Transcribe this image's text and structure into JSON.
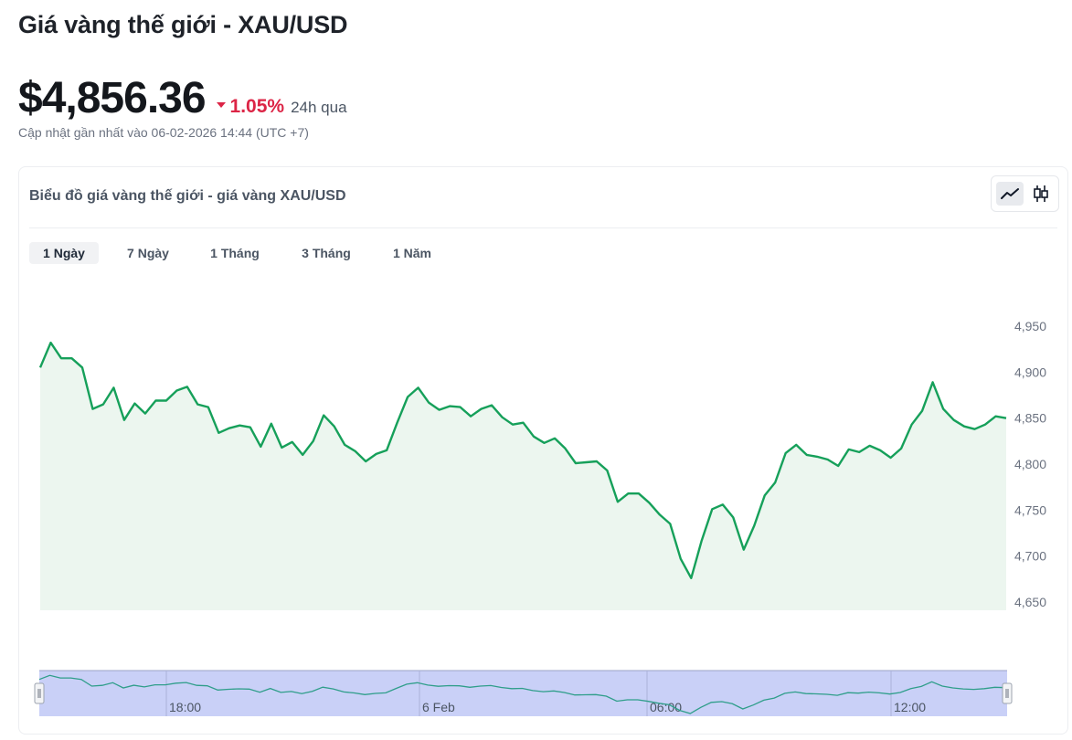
{
  "header": {
    "title": "Giá vàng thế giới - XAU/USD",
    "price": "$4,856.36",
    "change_pct": "1.05%",
    "change_label": "24h qua",
    "updated": "Cập nhật gần nhất vào 06-02-2026 14:44 (UTC +7)"
  },
  "card": {
    "title": "Biểu đồ giá vàng thế giới - giá vàng XAU/USD",
    "chart_types": [
      "line-chart-icon",
      "candlestick-icon"
    ],
    "active_chart_type": "line-chart-icon",
    "ranges": [
      "1 Ngày",
      "7 Ngày",
      "1 Tháng",
      "3 Tháng",
      "1 Năm"
    ],
    "active_range": "1 Ngày"
  },
  "colors": {
    "line": "#16a05a",
    "area": "#ecf6ef",
    "down": "#dc2546",
    "navigator_fill": "#c9d0f7",
    "navigator_line": "#2f9e8a"
  },
  "chart_data": {
    "type": "area",
    "y_ticks": [
      "4,950",
      "4,900",
      "4,850",
      "4,800",
      "4,750",
      "4,700",
      "4,650"
    ],
    "ylim": [
      4650,
      4950
    ],
    "navigator_ticks": [
      "18:00",
      "6 Feb",
      "06:00",
      "12:00"
    ],
    "grid": false,
    "values": [
      4905,
      4932,
      4915,
      4915,
      4905,
      4860,
      4865,
      4883,
      4848,
      4866,
      4855,
      4869,
      4869,
      4880,
      4884,
      4865,
      4862,
      4834,
      4839,
      4842,
      4840,
      4819,
      4844,
      4818,
      4824,
      4810,
      4825,
      4853,
      4841,
      4821,
      4814,
      4803,
      4811,
      4815,
      4845,
      4873,
      4883,
      4867,
      4859,
      4863,
      4862,
      4852,
      4860,
      4864,
      4851,
      4843,
      4845,
      4830,
      4823,
      4828,
      4817,
      4801,
      4802,
      4803,
      4793,
      4759,
      4768,
      4768,
      4758,
      4745,
      4735,
      4697,
      4676,
      4717,
      4751,
      4756,
      4742,
      4707,
      4733,
      4766,
      4780,
      4812,
      4821,
      4810,
      4808,
      4805,
      4798,
      4816,
      4813,
      4820,
      4815,
      4807,
      4817,
      4843,
      4858,
      4889,
      4860,
      4848,
      4841,
      4838,
      4843,
      4852,
      4850
    ]
  }
}
